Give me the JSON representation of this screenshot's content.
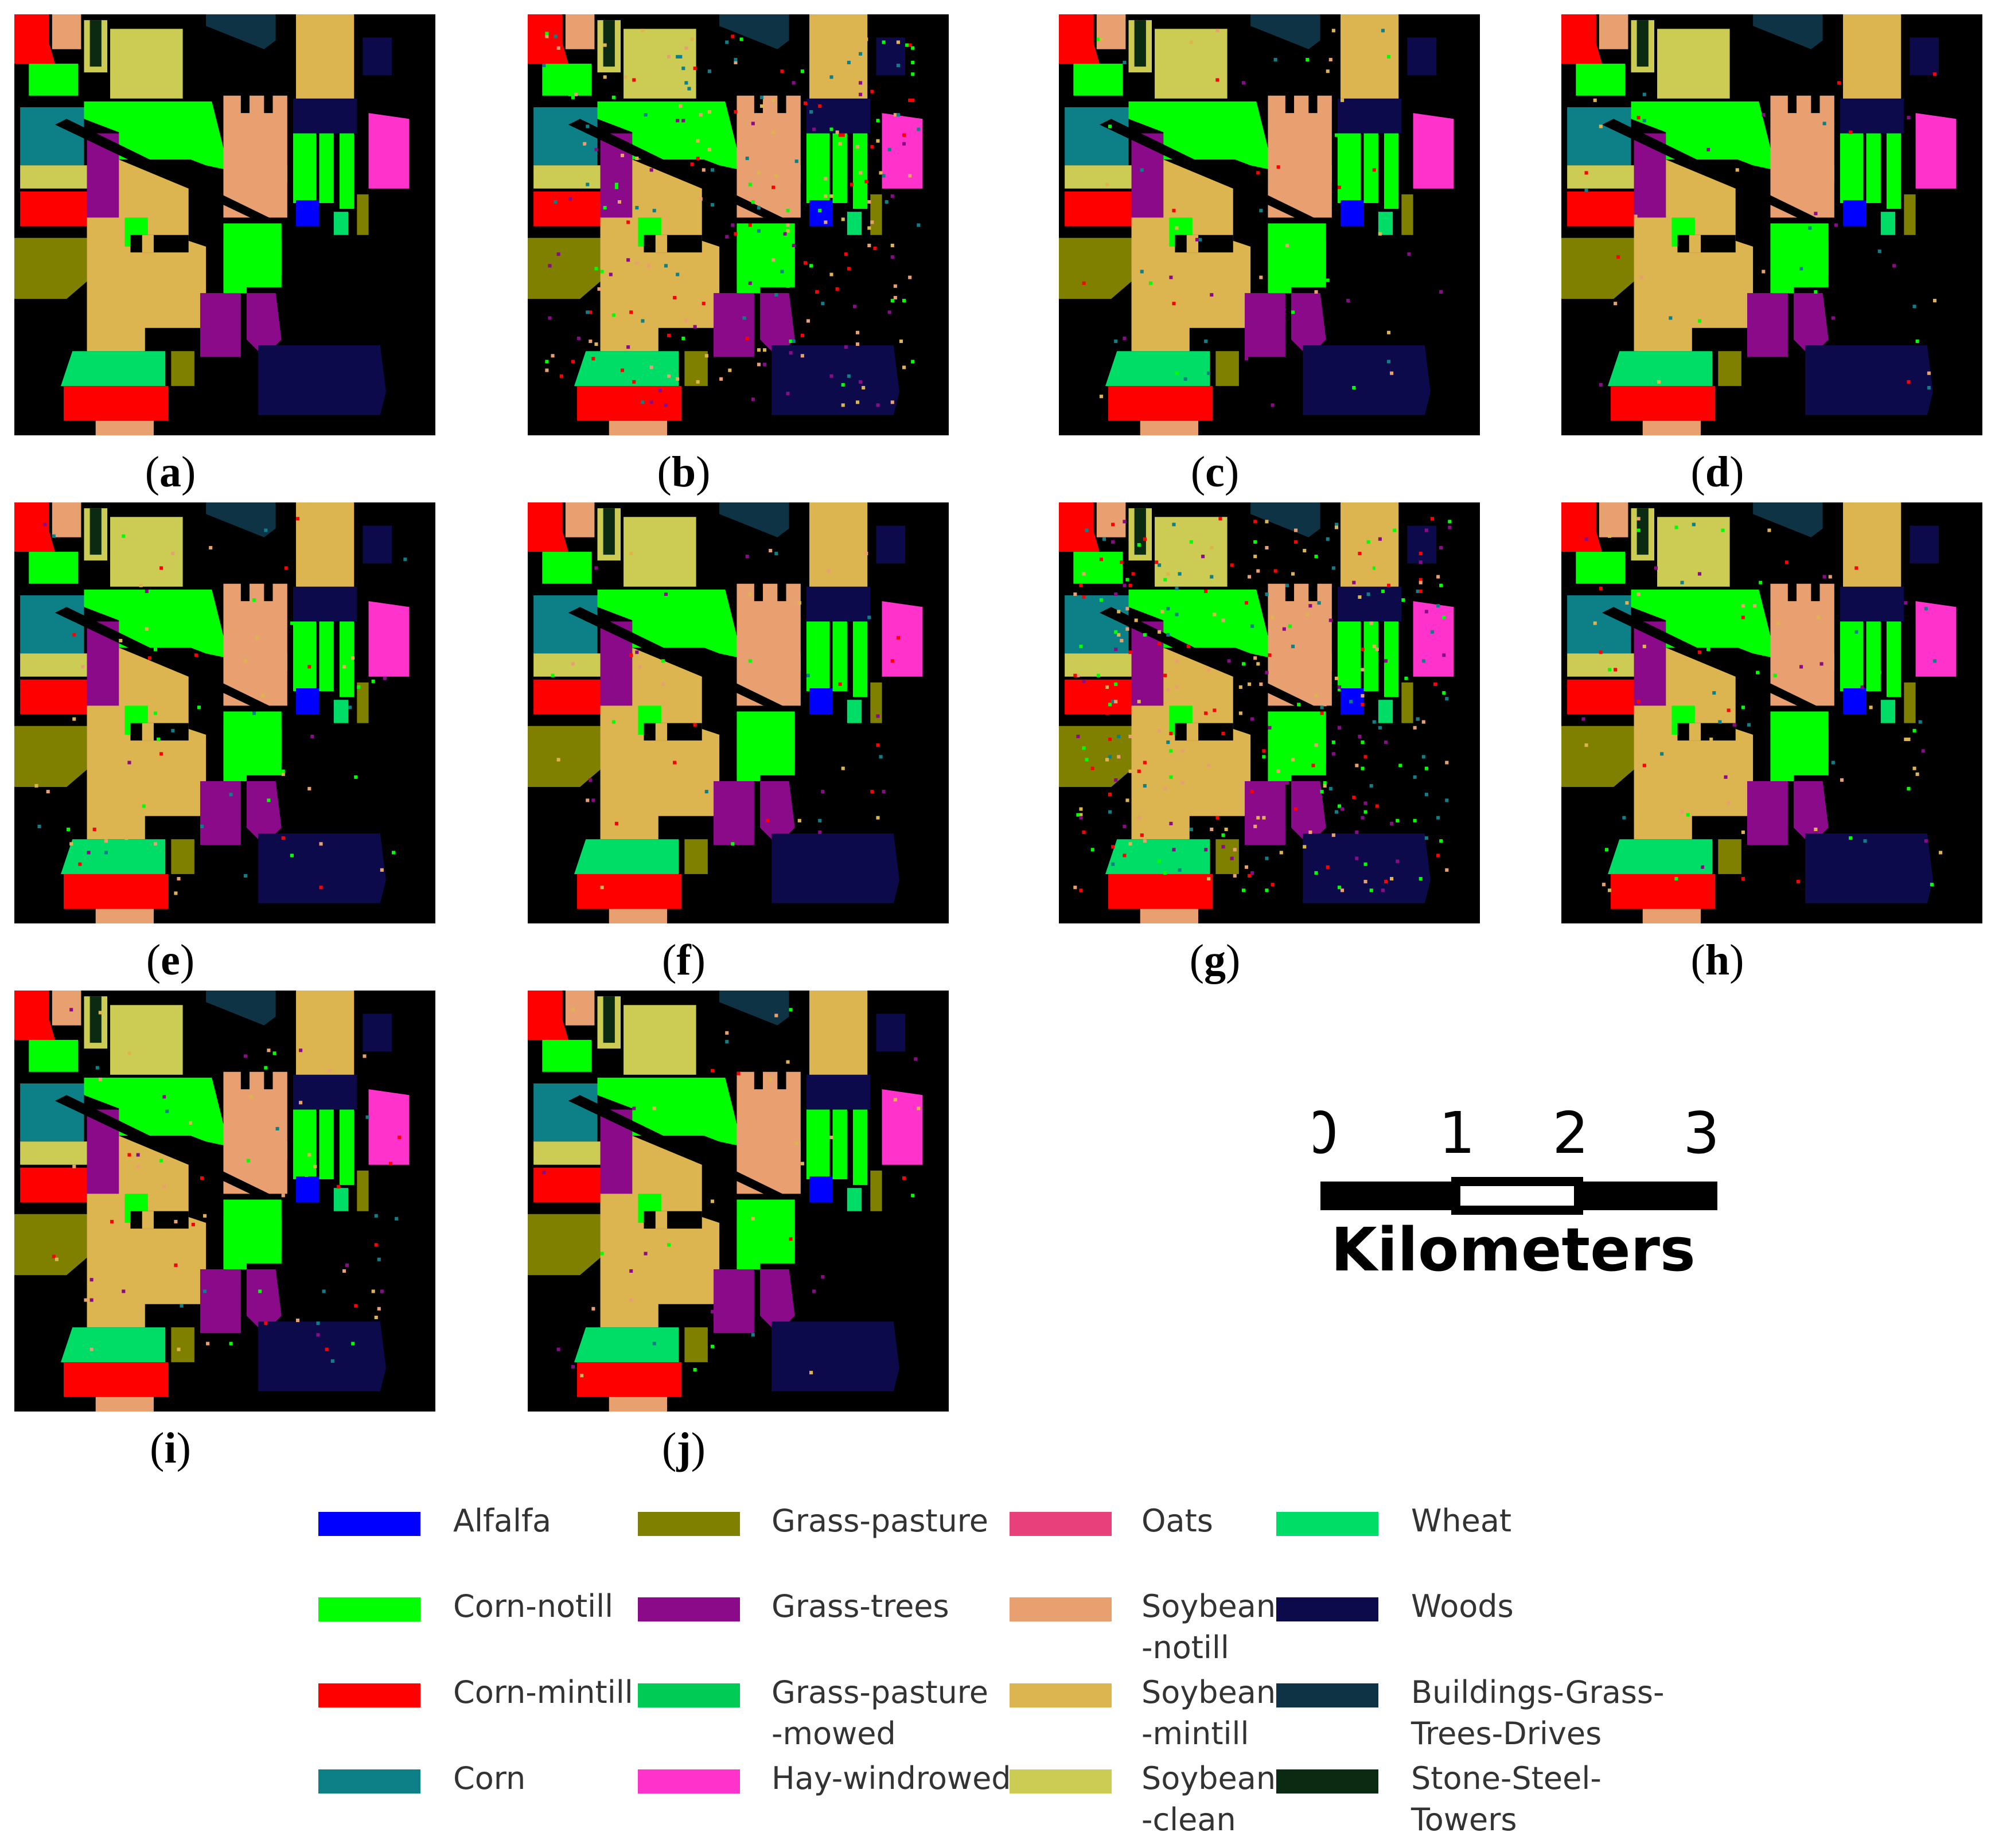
{
  "panels": [
    "a",
    "b",
    "c",
    "d",
    "e",
    "f",
    "g",
    "h",
    "i",
    "j"
  ],
  "scale_bar": {
    "ticks": [
      "0",
      "1",
      "2",
      "3"
    ],
    "unit": "Kilometers"
  },
  "colors": {
    "background": "#000000",
    "alfalfa": "#0000ff",
    "corn_notill": "#00ff00",
    "corn_mintill": "#ff0000",
    "corn": "#0d7f86",
    "grass_pasture": "#7f7f00",
    "grass_trees": "#8a0a8a",
    "grass_pasture_mowed": "#00cc55",
    "hay_windrowed": "#ff33cc",
    "oats": "#e8407a",
    "soybean_notill": "#e8a070",
    "soybean_mintill": "#ddb550",
    "soybean_clean": "#cccc55",
    "wheat": "#00dd66",
    "woods": "#0c0a4a",
    "buildings": "#0d3344",
    "stone_steel": "#0a2a12"
  },
  "legend": [
    {
      "color": "#0000ff",
      "lines": [
        "Alfalfa"
      ]
    },
    {
      "color": "#00ff00",
      "lines": [
        "Corn-notill"
      ]
    },
    {
      "color": "#ff0000",
      "lines": [
        "Corn-mintill"
      ]
    },
    {
      "color": "#0d7f86",
      "lines": [
        "Corn"
      ]
    },
    {
      "color": "#7f7f00",
      "lines": [
        "Grass-pasture"
      ]
    },
    {
      "color": "#8a0a8a",
      "lines": [
        "Grass-trees"
      ]
    },
    {
      "color": "#00cc55",
      "lines": [
        "Grass-pasture",
        "-mowed"
      ]
    },
    {
      "color": "#ff33cc",
      "lines": [
        "Hay-windrowed"
      ]
    },
    {
      "color": "#e8407a",
      "lines": [
        "Oats"
      ]
    },
    {
      "color": "#e8a070",
      "lines": [
        "Soybean",
        "-notill"
      ]
    },
    {
      "color": "#ddb550",
      "lines": [
        "Soybean",
        "-mintill"
      ]
    },
    {
      "color": "#cccc55",
      "lines": [
        "Soybean",
        "-clean"
      ]
    },
    {
      "color": "#00dd66",
      "lines": [
        "Wheat"
      ]
    },
    {
      "color": "#0c0a4a",
      "lines": [
        "Woods"
      ]
    },
    {
      "color": "#0d3344",
      "lines": [
        "Buildings-Grass-",
        "Trees-Drives"
      ]
    },
    {
      "color": "#0a2a12",
      "lines": [
        "Stone-Steel-",
        "Towers"
      ]
    }
  ]
}
